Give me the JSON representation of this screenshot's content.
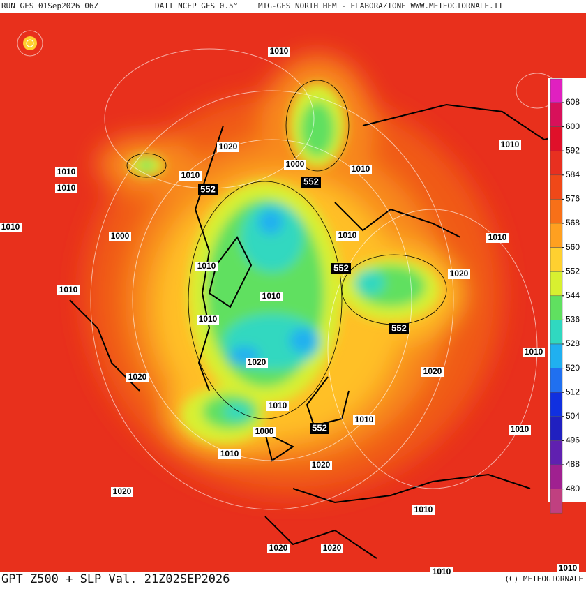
{
  "header": {
    "run": "RUN GFS 01Sep2026 06Z",
    "source": "DATI NCEP GFS 0.5°",
    "product": "MTG-GFS NORTH HEM - ELABORAZIONE WWW.METEOGIORNALE.IT"
  },
  "footer": {
    "title": "GPT Z500 + SLP Val. 21Z02SEP2026",
    "copyright": "(C) METEOGIORNALE"
  },
  "legend": {
    "ticks": [
      608,
      600,
      592,
      584,
      576,
      568,
      560,
      552,
      544,
      536,
      528,
      520,
      512,
      504,
      496,
      488,
      480
    ],
    "colors": [
      "#e020c0",
      "#d8105a",
      "#e0102a",
      "#e83020",
      "#f04818",
      "#f87018",
      "#ffa020",
      "#ffd030",
      "#d8f030",
      "#60e060",
      "#30d8c0",
      "#20b0f0",
      "#2070f0",
      "#1030e0",
      "#2020c0",
      "#6020b0",
      "#a02090",
      "#c04080"
    ]
  },
  "slp_labels": [
    1010,
    1020,
    1000,
    1010,
    1010,
    1010,
    1010,
    1010,
    1010,
    1000,
    1010,
    1010,
    1020,
    1010,
    1010,
    1010,
    1010,
    1010,
    1020,
    1020,
    1020,
    1010,
    1010,
    1000,
    1010,
    1010,
    1020,
    1020,
    1010,
    1020,
    1020,
    1010,
    1010
  ],
  "z500_labels": [
    552,
    552,
    552,
    552,
    552
  ]
}
